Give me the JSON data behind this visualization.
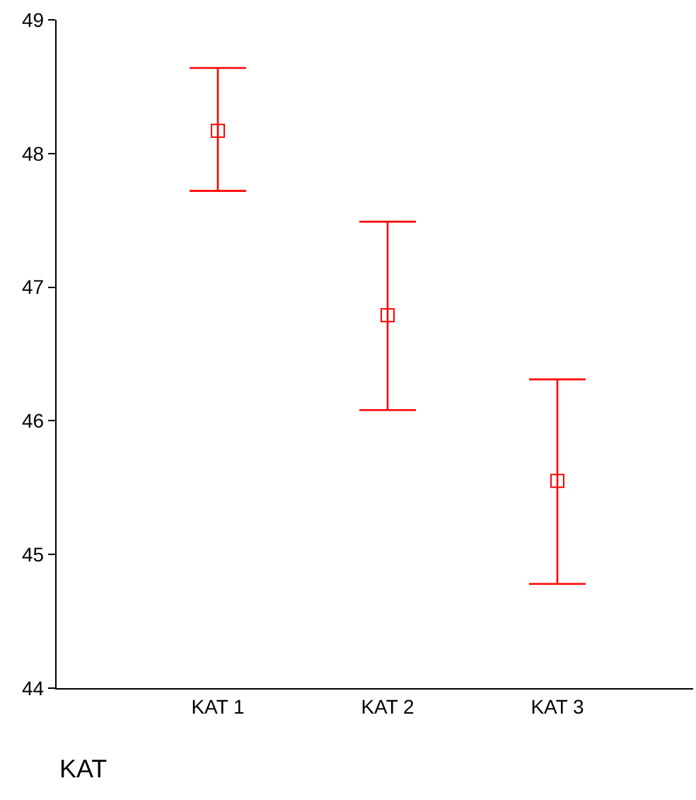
{
  "chart_data": {
    "type": "scatter",
    "xlabel": "KAT",
    "categories": [
      "KAT 1",
      "KAT 2",
      "KAT 3"
    ],
    "series": [
      {
        "color": "#ff0000",
        "values": [
          48.17,
          46.79,
          45.55
        ],
        "errors": [
          [
            47.72,
            48.64
          ],
          [
            46.08,
            47.49
          ],
          [
            44.78,
            46.31
          ]
        ]
      }
    ],
    "ylim": [
      44,
      49
    ],
    "yticks": [
      44,
      45,
      46,
      47,
      48,
      49
    ],
    "grid": false,
    "marker": "square"
  }
}
